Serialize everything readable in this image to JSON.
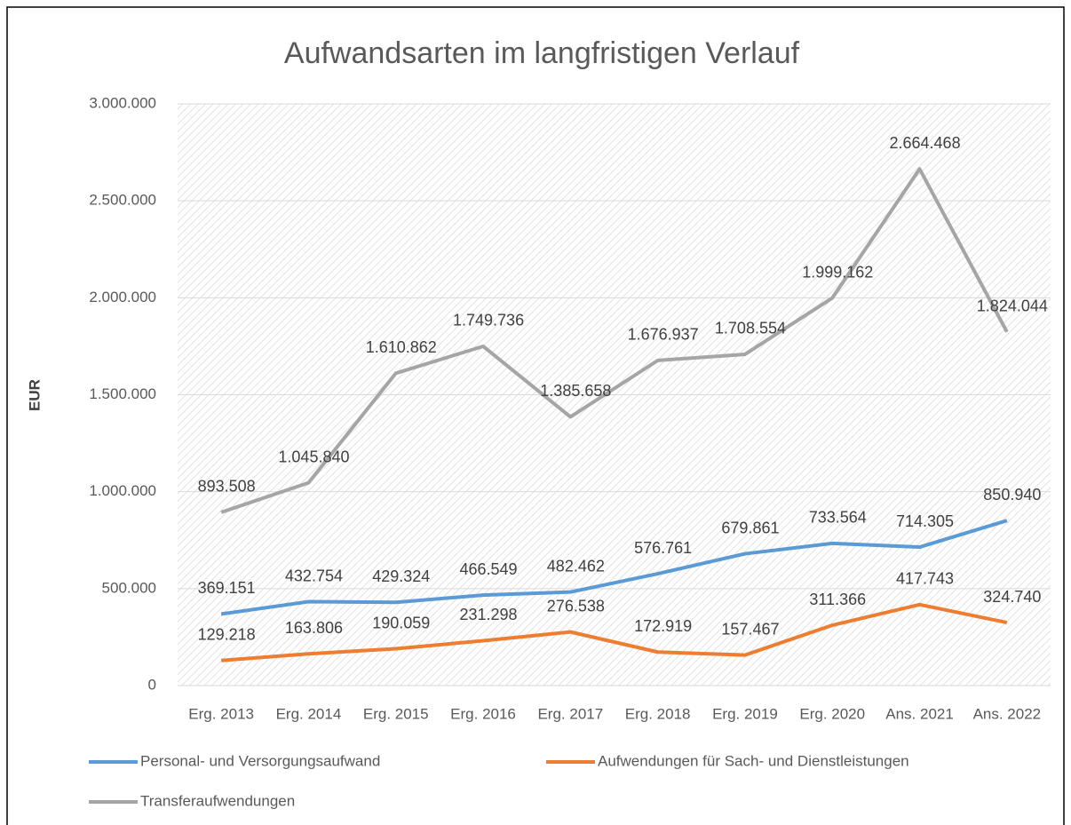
{
  "chart_data": {
    "type": "line",
    "title": "Aufwandsarten im langfristigen Verlauf",
    "y_label": "EUR",
    "categories": [
      "Erg. 2013",
      "Erg. 2014",
      "Erg. 2015",
      "Erg. 2016",
      "Erg. 2017",
      "Erg. 2018",
      "Erg. 2019",
      "Erg. 2020",
      "Ans. 2021",
      "Ans. 2022"
    ],
    "series": [
      {
        "name": "Personal- und Versorgungsaufwand",
        "color": "#5b9bd5",
        "values": [
          369151,
          432754,
          429324,
          466549,
          482462,
          576761,
          679861,
          733564,
          714305,
          850940
        ],
        "value_labels": [
          "369.151",
          "432.754",
          "429.324",
          "466.549",
          "482.462",
          "576.761",
          "679.861",
          "733.564",
          "714.305",
          "850.940"
        ]
      },
      {
        "name": "Aufwendungen für Sach- und Dienstleistungen",
        "color": "#ed7d31",
        "values": [
          129218,
          163806,
          190059,
          231298,
          276538,
          172919,
          157467,
          311366,
          417743,
          324740
        ],
        "value_labels": [
          "129.218",
          "163.806",
          "190.059",
          "231.298",
          "276.538",
          "172.919",
          "157.467",
          "311.366",
          "417.743",
          "324.740"
        ]
      },
      {
        "name": "Transferaufwendungen",
        "color": "#a5a5a5",
        "values": [
          893508,
          1045840,
          1610862,
          1749736,
          1385658,
          1676937,
          1708554,
          1999162,
          2664468,
          1824044
        ],
        "value_labels": [
          "893.508",
          "1.045.840",
          "1.610.862",
          "1.749.736",
          "1.385.658",
          "1.676.937",
          "1.708.554",
          "1.999.162",
          "2.664.468",
          "1.824.044"
        ]
      }
    ],
    "ylim": [
      0,
      3000000
    ],
    "yticks": [
      0,
      {
        "value": 500000,
        "label": "500.000"
      },
      {
        "value": 1000000,
        "label": "1.000.000"
      },
      {
        "value": 1500000,
        "label": "1.500.000"
      },
      {
        "value": 2000000,
        "label": "2.000.000"
      },
      {
        "value": 2500000,
        "label": "2.500.000"
      },
      {
        "value": 3000000,
        "label": "3.000.000"
      }
    ],
    "grid": true,
    "legend": "bottom"
  }
}
